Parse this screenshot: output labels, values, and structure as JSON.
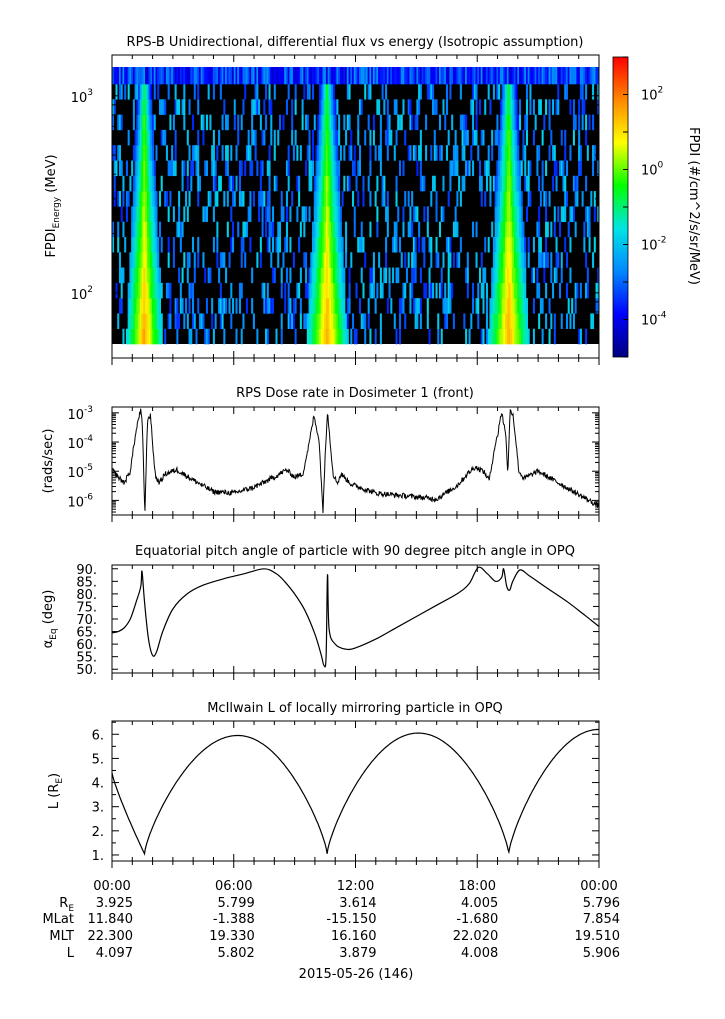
{
  "chart_data": [
    {
      "type": "heatmap",
      "title": "RPS-B  Unidirectional, differential flux vs energy (Isotropic assumption)",
      "ylabel_main": "FPDI",
      "ylabel_sub": "Energy",
      "ylabel_unit": "(MeV)",
      "y_scale": "log",
      "ylim": [
        55,
        1400
      ],
      "y_ticks": [
        {
          "value": 100,
          "base": "10",
          "exp": "2"
        },
        {
          "value": 1000,
          "base": "10",
          "exp": "3"
        }
      ],
      "xlim": [
        0,
        24
      ],
      "x_units": "hours from 2015-05-26 00:00",
      "peaks_hours": [
        {
          "center": 1.6,
          "half_width": 0.9
        },
        {
          "center": 10.6,
          "half_width": 1.0
        },
        {
          "center": 19.55,
          "half_width": 1.0
        }
      ],
      "colorbar": {
        "label": "FPDI (#/cm^2/s/sr/MeV)",
        "scale": "log",
        "range": [
          -5,
          3
        ],
        "ticks": [
          {
            "base": "10",
            "exp": "2",
            "value": 2
          },
          {
            "base": "10",
            "exp": "0",
            "value": 0
          },
          {
            "base": "10",
            "exp": "-2",
            "value": -2
          },
          {
            "base": "10",
            "exp": "-4",
            "value": -4
          }
        ],
        "colors": [
          "#000080",
          "#0000ff",
          "#0088ff",
          "#00e5e5",
          "#00ff00",
          "#ffff00",
          "#ff8800",
          "#ff0000"
        ]
      }
    },
    {
      "type": "line",
      "title": "RPS  Dose rate in Dosimeter 1 (front)",
      "ylabel": "(rads/sec)",
      "y_scale": "log",
      "ylim_log10": [
        -6.5,
        -2.8
      ],
      "y_ticks": [
        {
          "value": -6,
          "base": "10",
          "exp": "-6"
        },
        {
          "value": -5,
          "base": "10",
          "exp": "-5"
        },
        {
          "value": -4,
          "base": "10",
          "exp": "-4"
        },
        {
          "value": -3,
          "base": "10",
          "exp": "-3"
        }
      ],
      "x": [
        0,
        0.3,
        0.6,
        0.9,
        1.1,
        1.3,
        1.42,
        1.5,
        1.62,
        1.75,
        1.9,
        2.05,
        2.15,
        2.35,
        2.6,
        3.2,
        4.0,
        5.0,
        6.0,
        7.0,
        8.0,
        8.6,
        9.0,
        9.4,
        9.7,
        9.95,
        10.2,
        10.4,
        10.5,
        10.62,
        10.75,
        10.9,
        11.1,
        11.3,
        11.8,
        13.0,
        14.5,
        16.0,
        17.0,
        17.5,
        17.9,
        18.3,
        18.6,
        18.85,
        19.0,
        19.1,
        19.2,
        19.32,
        19.42,
        19.5,
        19.62,
        19.75,
        19.88,
        20.05,
        20.3,
        21.0,
        22.0,
        23.0,
        24.0
      ],
      "y_log10": [
        -4.95,
        -5.2,
        -5.4,
        -5.0,
        -4.0,
        -3.2,
        -2.9,
        -3.5,
        -6.5,
        -3.2,
        -3.1,
        -4.5,
        -5.2,
        -5.4,
        -5.1,
        -4.95,
        -5.3,
        -5.7,
        -5.75,
        -5.55,
        -5.2,
        -4.95,
        -5.2,
        -5.1,
        -4.1,
        -3.1,
        -3.9,
        -6.4,
        -4.5,
        -2.9,
        -4.0,
        -5.1,
        -5.4,
        -5.1,
        -5.45,
        -5.75,
        -5.85,
        -5.95,
        -5.5,
        -5.1,
        -4.85,
        -5.0,
        -5.3,
        -4.2,
        -3.8,
        -3.3,
        -3.0,
        -3.4,
        -3.8,
        -5.15,
        -2.95,
        -3.0,
        -3.8,
        -5.0,
        -5.25,
        -5.0,
        -5.4,
        -5.8,
        -6.2
      ],
      "xlim": [
        0,
        24
      ]
    },
    {
      "type": "line",
      "title": "Equatorial pitch angle of particle with 90 degree pitch angle in OPQ",
      "ylabel": "α",
      "ylabel_sub": "Eq",
      "ylabel_unit": "(deg)",
      "ylim": [
        48.5,
        91.5
      ],
      "y_ticks": [
        50,
        55,
        60,
        65,
        70,
        75,
        80,
        85,
        90
      ],
      "x": [
        0,
        0.3,
        0.6,
        0.9,
        1.2,
        1.42,
        1.48,
        1.6,
        1.8,
        2.0,
        2.2,
        2.5,
        3.0,
        3.7,
        4.5,
        5.5,
        6.5,
        7.5,
        8.1,
        8.5,
        9.0,
        9.5,
        10.0,
        10.3,
        10.45,
        10.55,
        10.62,
        10.7,
        11.0,
        11.5,
        12.0,
        13.0,
        14.0,
        15.0,
        16.0,
        17.0,
        17.6,
        18.05,
        18.5,
        18.9,
        19.2,
        19.3,
        19.45,
        19.6,
        19.75,
        20.1,
        20.6,
        21.5,
        22.5,
        23.3,
        24.0
      ],
      "y": [
        64.5,
        65.0,
        66.5,
        70.0,
        77.0,
        83.0,
        89.0,
        77.0,
        62.0,
        55.5,
        57.0,
        65.0,
        74.0,
        80.0,
        83.5,
        86.0,
        88.0,
        90.0,
        88.0,
        85.0,
        80.0,
        73.5,
        64.0,
        56.0,
        51.5,
        55.0,
        87.5,
        66.0,
        60.0,
        58.0,
        58.5,
        62.0,
        66.5,
        71.0,
        75.5,
        80.0,
        84.0,
        90.5,
        88.0,
        85.0,
        86.5,
        90.0,
        83.0,
        81.5,
        85.0,
        89.5,
        87.0,
        82.0,
        76.5,
        71.5,
        67.0
      ],
      "xlim": [
        0,
        24
      ]
    },
    {
      "type": "line",
      "title": "McIlwain L of locally mirroring particle in OPQ",
      "ylabel": "L (R",
      "ylabel_sub": "E",
      "ylabel_end": ")",
      "ylim": [
        0.75,
        6.55
      ],
      "y_ticks": [
        1,
        2,
        3,
        4,
        5,
        6
      ],
      "curve_segments": [
        {
          "t0": 0,
          "t1": 1.6,
          "form": "log-sin",
          "ystart": 4.4,
          "yend": 1.05
        },
        {
          "t0": 1.6,
          "t1": 10.6,
          "form": "bump",
          "ymin": 1.05,
          "ymax": 5.95,
          "peak": 6.2
        },
        {
          "t0": 10.6,
          "t1": 19.55,
          "form": "bump",
          "ymin": 1.05,
          "ymax": 6.05,
          "peak": 15.1
        },
        {
          "t0": 19.55,
          "t1": 24,
          "form": "rise",
          "ymin": 1.05,
          "yend": 6.2
        }
      ],
      "xlim": [
        0,
        24
      ],
      "x_ticklabels": [
        "00:00",
        "06:00",
        "12:00",
        "18:00",
        "00:00"
      ]
    }
  ],
  "ephemeris": {
    "row_labels": [
      {
        "main": "R",
        "sub": "E"
      },
      {
        "main": "MLat",
        "sub": ""
      },
      {
        "main": "MLT",
        "sub": ""
      },
      {
        "main": "L",
        "sub": ""
      }
    ],
    "columns": [
      [
        "3.925",
        "11.840",
        "22.300",
        "4.097"
      ],
      [
        "5.799",
        "-1.388",
        "19.330",
        "5.802"
      ],
      [
        "3.614",
        "-15.150",
        "16.160",
        "3.879"
      ],
      [
        "4.005",
        "-1.680",
        "22.020",
        "4.008"
      ],
      [
        "5.796",
        "7.854",
        "19.510",
        "5.906"
      ]
    ]
  },
  "date_label": "2015-05-26 (146)",
  "line_color": "#000000"
}
